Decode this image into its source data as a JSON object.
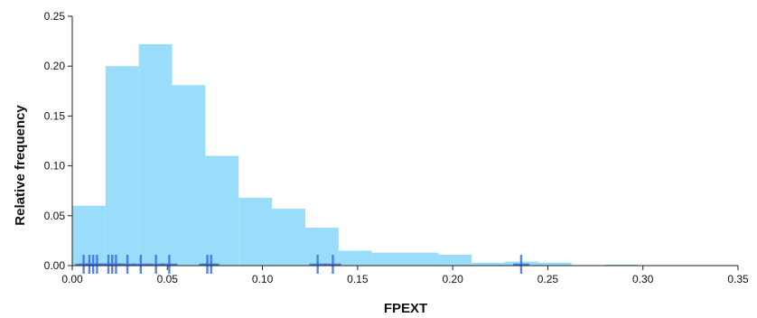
{
  "chart_data": {
    "type": "histogram",
    "xlabel": "FPEXT",
    "ylabel": "Relative frequency",
    "xlim": [
      0,
      0.35
    ],
    "ylim": [
      0,
      0.25
    ],
    "x_ticks": [
      "0.00",
      "0.05",
      "0.10",
      "0.15",
      "0.20",
      "0.25",
      "0.30",
      "0.35"
    ],
    "y_ticks": [
      "0.00",
      "0.05",
      "0.10",
      "0.15",
      "0.20",
      "0.25"
    ],
    "grid": false,
    "bar_color": "#99ddfa",
    "rug_color": "#3b6fe0",
    "bins": [
      {
        "x0": 0.0,
        "x1": 0.0175,
        "value": 0.06
      },
      {
        "x0": 0.0175,
        "x1": 0.035,
        "value": 0.2
      },
      {
        "x0": 0.035,
        "x1": 0.0525,
        "value": 0.222
      },
      {
        "x0": 0.0525,
        "x1": 0.07,
        "value": 0.181
      },
      {
        "x0": 0.07,
        "x1": 0.0875,
        "value": 0.11
      },
      {
        "x0": 0.0875,
        "x1": 0.105,
        "value": 0.068
      },
      {
        "x0": 0.105,
        "x1": 0.1225,
        "value": 0.057
      },
      {
        "x0": 0.1225,
        "x1": 0.14,
        "value": 0.038
      },
      {
        "x0": 0.14,
        "x1": 0.1575,
        "value": 0.015
      },
      {
        "x0": 0.1575,
        "x1": 0.175,
        "value": 0.013
      },
      {
        "x0": 0.175,
        "x1": 0.1925,
        "value": 0.013
      },
      {
        "x0": 0.1925,
        "x1": 0.21,
        "value": 0.011
      },
      {
        "x0": 0.21,
        "x1": 0.2275,
        "value": 0.003
      },
      {
        "x0": 0.2275,
        "x1": 0.245,
        "value": 0.004
      },
      {
        "x0": 0.245,
        "x1": 0.2625,
        "value": 0.003
      },
      {
        "x0": 0.2625,
        "x1": 0.28,
        "value": 0.0
      },
      {
        "x0": 0.28,
        "x1": 0.2975,
        "value": 0.001
      }
    ],
    "rug": [
      0.006,
      0.009,
      0.011,
      0.013,
      0.019,
      0.021,
      0.023,
      0.029,
      0.036,
      0.044,
      0.051,
      0.071,
      0.073,
      0.129,
      0.137,
      0.236
    ]
  }
}
